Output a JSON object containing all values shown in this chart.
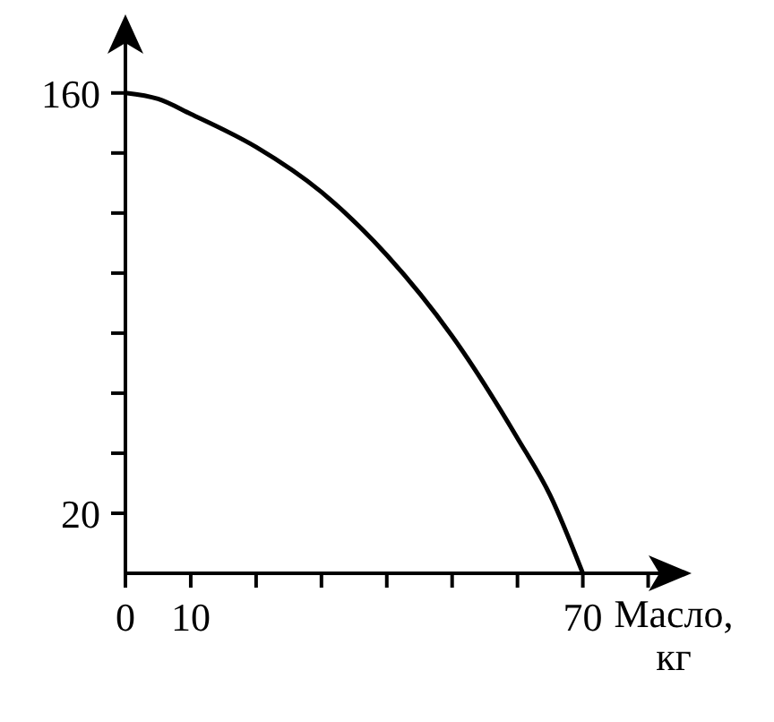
{
  "chart_data": {
    "type": "line",
    "xlabel": "Масло, кг",
    "x": [
      0,
      5,
      10,
      20,
      30,
      40,
      50,
      60,
      65,
      70
    ],
    "series": [
      {
        "color": "#000000",
        "values": [
          160,
          158,
          153,
          142,
          127,
          106,
          79,
          45,
          26,
          0
        ]
      }
    ],
    "xlim": [
      0,
      85
    ],
    "ylim": [
      0,
      185
    ],
    "xticks": [
      {
        "value": 0,
        "label": "0"
      },
      10,
      {
        "value": 20,
        "label": null
      },
      {
        "value": 30,
        "label": null
      },
      {
        "value": 40,
        "label": null
      },
      {
        "value": 50,
        "label": null
      },
      {
        "value": 60,
        "label": null
      },
      70,
      {
        "value": 80,
        "label": null
      }
    ],
    "yticks": [
      20,
      {
        "value": 40,
        "label": null
      },
      {
        "value": 60,
        "label": null
      },
      {
        "value": 80,
        "label": null
      },
      {
        "value": 100,
        "label": null
      },
      {
        "value": 120,
        "label": null
      },
      {
        "value": 140,
        "label": null
      },
      160
    ],
    "grid": false,
    "legend": false,
    "marker": "none",
    "line_style": "solid"
  }
}
